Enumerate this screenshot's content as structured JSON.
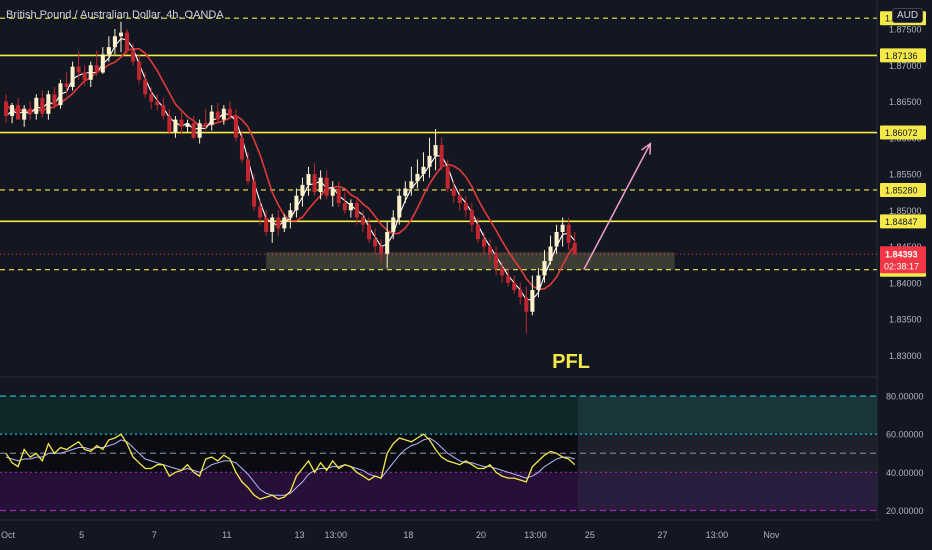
{
  "header": {
    "title": "British Pound / Australian Dollar, 4h, OANDA",
    "currency": "AUD"
  },
  "annotation": {
    "text": "PFL"
  },
  "colors": {
    "background": "#131722",
    "up_candle": "#fff2cc",
    "down_candle": "#c2262e",
    "level_line": "#f5e94a",
    "fast_ma": "#ffffff",
    "slow_ma": "#e03a3a",
    "zone": "#4a4a3a",
    "arrow": "#f2a0c6",
    "pfl_text": "#f5e94a",
    "rsi_line": "#f5e94a",
    "rsi_signal": "#b8b8ff",
    "price_tag": "#f23645"
  },
  "chart_data": [
    {
      "type": "candlestick",
      "symbol": "GBPAUD",
      "timeframe": "4h",
      "ylim": [
        1.827,
        1.879
      ],
      "y_ticks": [
        "1.87500",
        "1.87000",
        "1.86500",
        "1.86000",
        "1.85500",
        "1.85000",
        "1.84500",
        "1.84000",
        "1.83500",
        "1.83000"
      ],
      "x_ticks": [
        {
          "label": "Oct",
          "bar": 0
        },
        {
          "label": "5",
          "bar": 13
        },
        {
          "label": "7",
          "bar": 25
        },
        {
          "label": "11",
          "bar": 37
        },
        {
          "label": "13",
          "bar": 49
        },
        {
          "label": "13:00",
          "bar": 55
        },
        {
          "label": "18",
          "bar": 67
        },
        {
          "label": "20",
          "bar": 79
        },
        {
          "label": "13:00",
          "bar": 88
        },
        {
          "label": "25",
          "bar": 97
        },
        {
          "label": "27",
          "bar": 109
        },
        {
          "label": "13:00",
          "bar": 118
        },
        {
          "label": "Nov",
          "bar": 127
        }
      ],
      "horizontal_levels": [
        {
          "value": 1.87649,
          "label": "1.87649",
          "style": "dashed"
        },
        {
          "value": 1.87136,
          "label": "1.87136",
          "style": "solid"
        },
        {
          "value": 1.86072,
          "label": "1.86072",
          "style": "solid"
        },
        {
          "value": 1.8528,
          "label": "1.85280",
          "style": "dashed"
        },
        {
          "value": 1.84847,
          "label": "1.84847",
          "style": "solid"
        },
        {
          "value": 1.8418,
          "label": "1.84180",
          "style": "dashed"
        }
      ],
      "current_price": {
        "value": 1.84393,
        "label": "1.84393",
        "countdown": "02:38:17"
      },
      "zone": {
        "from_bar": 43.5,
        "to_bar": 111,
        "low": 1.8418,
        "high": 1.8442
      },
      "projection_arrow": {
        "from_bar": 96,
        "from_price": 1.8418,
        "to_bar": 107,
        "to_price": 1.8592
      },
      "series": [
        {
          "name": "open",
          "values": [
            1.865,
            1.863,
            1.8645,
            1.8625,
            1.864,
            1.8633,
            1.8655,
            1.8633,
            1.866,
            1.8645,
            1.8675,
            1.867,
            1.8698,
            1.869,
            1.868,
            1.87,
            1.869,
            1.8715,
            1.8725,
            1.874,
            1.8745,
            1.872,
            1.8705,
            1.868,
            1.866,
            1.865,
            1.8645,
            1.863,
            1.8608,
            1.8625,
            1.8615,
            1.862,
            1.86,
            1.862,
            1.8618,
            1.8636,
            1.8625,
            1.864,
            1.863,
            1.86,
            1.857,
            1.854,
            1.8505,
            1.849,
            1.847,
            1.849,
            1.8475,
            1.849,
            1.85,
            1.852,
            1.8535,
            1.855,
            1.8525,
            1.8545,
            1.852,
            1.853,
            1.851,
            1.85,
            1.851,
            1.849,
            1.848,
            1.846,
            1.845,
            1.844,
            1.847,
            1.849,
            1.852,
            1.853,
            1.854,
            1.855,
            1.856,
            1.8575,
            1.859,
            1.856,
            1.853,
            1.852,
            1.851,
            1.85,
            1.848,
            1.846,
            1.845,
            1.844,
            1.842,
            1.841,
            1.84,
            1.839,
            1.838,
            1.836,
            1.839,
            1.841,
            1.843,
            1.845,
            1.847,
            1.848,
            1.8455
          ],
          "x_start_bar": 0
        },
        {
          "name": "high",
          "values": [
            1.866,
            1.8648,
            1.8655,
            1.8645,
            1.865,
            1.866,
            1.8665,
            1.8665,
            1.867,
            1.868,
            1.869,
            1.8705,
            1.872,
            1.87,
            1.8705,
            1.872,
            1.8725,
            1.874,
            1.875,
            1.876,
            1.875,
            1.873,
            1.8715,
            1.869,
            1.867,
            1.866,
            1.8655,
            1.864,
            1.863,
            1.8635,
            1.8625,
            1.863,
            1.8625,
            1.864,
            1.8645,
            1.8648,
            1.8645,
            1.865,
            1.864,
            1.861,
            1.858,
            1.855,
            1.8515,
            1.85,
            1.8495,
            1.85,
            1.8495,
            1.851,
            1.853,
            1.8545,
            1.856,
            1.8565,
            1.8555,
            1.8555,
            1.854,
            1.854,
            1.8525,
            1.8515,
            1.8515,
            1.85,
            1.849,
            1.8475,
            1.846,
            1.8485,
            1.85,
            1.853,
            1.854,
            1.856,
            1.857,
            1.858,
            1.86,
            1.8612,
            1.86,
            1.857,
            1.854,
            1.853,
            1.852,
            1.851,
            1.849,
            1.847,
            1.846,
            1.845,
            1.843,
            1.842,
            1.841,
            1.84,
            1.8395,
            1.841,
            1.842,
            1.8445,
            1.8465,
            1.848,
            1.849,
            1.849,
            1.847
          ]
        },
        {
          "name": "low",
          "values": [
            1.862,
            1.862,
            1.8625,
            1.8615,
            1.8625,
            1.8625,
            1.8628,
            1.8625,
            1.864,
            1.864,
            1.866,
            1.8665,
            1.868,
            1.8672,
            1.867,
            1.8685,
            1.8688,
            1.8705,
            1.8715,
            1.8718,
            1.8715,
            1.87,
            1.8675,
            1.8655,
            1.864,
            1.8638,
            1.8625,
            1.8605,
            1.86,
            1.8605,
            1.8608,
            1.8598,
            1.8592,
            1.861,
            1.861,
            1.862,
            1.8618,
            1.8625,
            1.8595,
            1.8565,
            1.8535,
            1.85,
            1.848,
            1.8465,
            1.8455,
            1.8465,
            1.847,
            1.8475,
            1.849,
            1.8505,
            1.852,
            1.852,
            1.8515,
            1.8515,
            1.8505,
            1.8505,
            1.8495,
            1.849,
            1.848,
            1.847,
            1.8455,
            1.844,
            1.8428,
            1.842,
            1.846,
            1.848,
            1.851,
            1.852,
            1.853,
            1.854,
            1.8545,
            1.8555,
            1.8555,
            1.8525,
            1.851,
            1.85,
            1.849,
            1.847,
            1.8455,
            1.844,
            1.843,
            1.841,
            1.84,
            1.8395,
            1.8385,
            1.837,
            1.833,
            1.8355,
            1.838,
            1.84,
            1.8425,
            1.844,
            1.845,
            1.8445,
            1.844
          ]
        },
        {
          "name": "close",
          "values": [
            1.863,
            1.8645,
            1.8625,
            1.864,
            1.8633,
            1.8655,
            1.8633,
            1.866,
            1.8645,
            1.8675,
            1.867,
            1.8698,
            1.869,
            1.868,
            1.87,
            1.869,
            1.8715,
            1.8725,
            1.874,
            1.8745,
            1.872,
            1.8705,
            1.868,
            1.866,
            1.865,
            1.8645,
            1.863,
            1.8608,
            1.8625,
            1.8615,
            1.862,
            1.86,
            1.862,
            1.8618,
            1.8636,
            1.8625,
            1.864,
            1.863,
            1.86,
            1.857,
            1.854,
            1.8505,
            1.849,
            1.847,
            1.849,
            1.8475,
            1.849,
            1.85,
            1.852,
            1.8535,
            1.855,
            1.8525,
            1.8545,
            1.852,
            1.853,
            1.851,
            1.85,
            1.851,
            1.849,
            1.848,
            1.846,
            1.845,
            1.844,
            1.847,
            1.849,
            1.852,
            1.853,
            1.854,
            1.855,
            1.856,
            1.8575,
            1.859,
            1.856,
            1.853,
            1.852,
            1.851,
            1.85,
            1.848,
            1.846,
            1.845,
            1.844,
            1.842,
            1.841,
            1.84,
            1.839,
            1.838,
            1.836,
            1.839,
            1.841,
            1.843,
            1.845,
            1.847,
            1.848,
            1.8455,
            1.8439
          ]
        }
      ]
    },
    {
      "type": "line",
      "indicator": "RSI",
      "ylim": [
        15,
        90
      ],
      "y_ticks": [
        "80.00000",
        "60.00000",
        "40.00000",
        "20.00000"
      ],
      "bands": [
        {
          "value": 80,
          "style": "dashed",
          "color": "#26c6da"
        },
        {
          "value": 60,
          "style": "dotted",
          "color": "#26c6da"
        },
        {
          "value": 50,
          "style": "dashed",
          "color": "#787b86"
        },
        {
          "value": 40,
          "style": "dotted",
          "color": "#9c27b0"
        },
        {
          "value": 20,
          "style": "dashed",
          "color": "#9c27b0"
        }
      ],
      "series": [
        {
          "name": "rsi",
          "values": [
            50,
            45,
            43,
            52,
            48,
            50,
            46,
            55,
            50,
            53,
            52,
            54,
            56,
            52,
            51,
            54,
            52,
            57,
            58,
            60,
            55,
            48,
            45,
            42,
            42,
            44,
            44,
            38,
            40,
            41,
            44,
            40,
            38,
            47,
            48,
            46,
            49,
            47,
            40,
            35,
            32,
            28,
            26,
            27,
            28,
            26,
            27,
            30,
            38,
            42,
            46,
            40,
            45,
            41,
            46,
            42,
            44,
            43,
            40,
            38,
            36,
            38,
            37,
            50,
            55,
            58,
            57,
            56,
            58,
            60,
            57,
            52,
            48,
            46,
            45,
            44,
            46,
            44,
            42,
            42,
            44,
            40,
            38,
            37,
            37,
            36,
            35,
            43,
            46,
            49,
            51,
            50,
            48,
            47,
            44
          ]
        },
        {
          "name": "signal",
          "values": [
            48,
            47,
            46,
            47,
            47,
            48,
            48,
            50,
            50,
            50,
            51,
            52,
            53,
            53,
            52,
            53,
            53,
            54,
            55,
            57,
            56,
            53,
            50,
            47,
            46,
            45,
            44,
            43,
            42,
            41,
            42,
            41,
            40,
            42,
            44,
            45,
            46,
            46,
            45,
            42,
            39,
            35,
            31,
            29,
            28,
            28,
            28,
            29,
            32,
            35,
            39,
            41,
            42,
            42,
            43,
            43,
            44,
            43,
            42,
            41,
            39,
            38,
            37,
            41,
            45,
            49,
            52,
            54,
            55,
            57,
            58,
            56,
            53,
            50,
            48,
            46,
            45,
            45,
            44,
            43,
            43,
            42,
            41,
            40,
            39,
            38,
            37,
            38,
            40,
            43,
            45,
            47,
            48,
            48,
            47
          ]
        }
      ]
    }
  ]
}
